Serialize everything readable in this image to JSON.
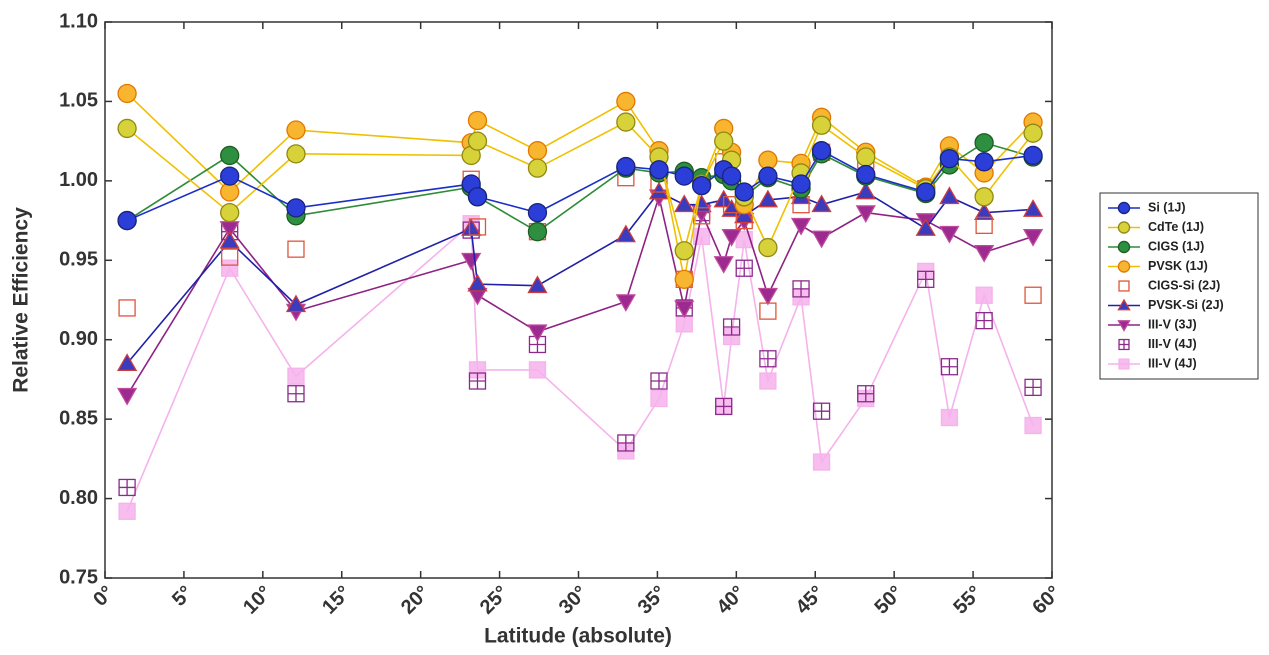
{
  "chart_data": {
    "type": "line",
    "x_label": "Latitude (absolute)",
    "y_label": "Relative Efficiency",
    "xlim": [
      0,
      60
    ],
    "ylim": [
      0.75,
      1.1
    ],
    "xticks": [
      {
        "value": 0,
        "label": "0°"
      },
      {
        "value": 5,
        "label": "5°"
      },
      {
        "value": 10,
        "label": "10°"
      },
      {
        "value": 15,
        "label": "15°"
      },
      {
        "value": 20,
        "label": "20°"
      },
      {
        "value": 25,
        "label": "25°"
      },
      {
        "value": 30,
        "label": "30°"
      },
      {
        "value": 35,
        "label": "35°"
      },
      {
        "value": 40,
        "label": "40°"
      },
      {
        "value": 45,
        "label": "45°"
      },
      {
        "value": 50,
        "label": "50°"
      },
      {
        "value": 55,
        "label": "55°"
      },
      {
        "value": 60,
        "label": "60°"
      }
    ],
    "yticks": [
      0.75,
      {
        "value": 0.8,
        "label": "0.80"
      },
      0.85,
      {
        "value": 0.9,
        "label": "0.90"
      },
      0.95,
      {
        "value": 1,
        "label": "1.00"
      },
      1.05,
      {
        "value": 1.1,
        "label": "1.10"
      }
    ],
    "legend": "outside-right",
    "x": [
      1.4,
      7.9,
      12.1,
      23.2,
      23.6,
      27.4,
      33.0,
      35.1,
      36.7,
      37.8,
      39.2,
      39.7,
      40.5,
      42.0,
      44.1,
      45.4,
      48.2,
      52.0,
      53.5,
      55.7,
      58.8
    ],
    "series": [
      {
        "name": "Si (1J)",
        "color": "#2b3fd8",
        "edge": "#1a237e",
        "line_color": "#1a2fc8",
        "marker": "circle",
        "line": true,
        "values": [
          0.975,
          1.003,
          0.983,
          0.998,
          0.99,
          0.98,
          1.009,
          1.007,
          1.003,
          0.997,
          1.007,
          1.003,
          0.993,
          1.003,
          0.998,
          1.019,
          1.004,
          0.993,
          1.014,
          1.012,
          1.016
        ]
      },
      {
        "name": "CdTe (1J)",
        "color": "#d8d23a",
        "edge": "#8f8a10",
        "line_color": "#f0c000",
        "marker": "circle",
        "line": true,
        "values": [
          1.033,
          0.98,
          1.017,
          1.016,
          1.025,
          1.008,
          1.037,
          1.015,
          0.956,
          0.998,
          1.025,
          1.013,
          0.99,
          0.958,
          1.005,
          1.035,
          1.015,
          0.995,
          1.015,
          0.99,
          1.03
        ]
      },
      {
        "name": "CIGS (1J)",
        "color": "#2f8f40",
        "edge": "#1b5e20",
        "line_color": "#2e8b3a",
        "marker": "circle",
        "line": true,
        "values": [
          0.975,
          1.016,
          0.978,
          0.996,
          0.99,
          0.968,
          1.008,
          1.005,
          1.006,
          1.002,
          1.004,
          1.0,
          0.99,
          1.002,
          0.995,
          1.017,
          1.003,
          0.992,
          1.01,
          1.024,
          1.015
        ]
      },
      {
        "name": "PVSK (1J)",
        "color": "#f8b530",
        "edge": "#e07800",
        "line_color": "#f0c000",
        "marker": "circle",
        "line": true,
        "values": [
          1.055,
          0.993,
          1.032,
          1.024,
          1.038,
          1.019,
          1.05,
          1.019,
          0.938,
          0.998,
          1.033,
          1.018,
          0.985,
          1.013,
          1.011,
          1.04,
          1.018,
          0.996,
          1.022,
          1.005,
          1.037
        ]
      },
      {
        "name": "CIGS-Si (2J)",
        "color": "none",
        "edge": "#e0553a",
        "line_color": "#e0553a",
        "marker": "square-open",
        "line": false,
        "values": [
          0.92,
          0.952,
          0.957,
          1.001,
          0.971,
          0.968,
          1.002,
          0.998,
          0.938,
          0.978,
          1.012,
          0.985,
          0.975,
          0.918,
          0.985,
          1.018,
          1.013,
          0.995,
          1.018,
          0.972,
          0.928
        ]
      },
      {
        "name": "PVSK-Si (2J)",
        "color": "#3b3bbd",
        "edge": "#d03a3a",
        "line_color": "#2020a8",
        "marker": "triangle-up",
        "line": true,
        "values": [
          0.885,
          0.962,
          0.922,
          0.97,
          0.935,
          0.934,
          0.966,
          0.993,
          0.985,
          0.985,
          0.988,
          0.982,
          0.978,
          0.988,
          0.99,
          0.985,
          0.993,
          0.97,
          0.99,
          0.98,
          0.982
        ]
      },
      {
        "name": "III-V (3J)",
        "color": "#9c2a90",
        "edge": "#c04a9a",
        "line_color": "#8e2283",
        "marker": "triangle-down",
        "line": true,
        "values": [
          0.865,
          0.97,
          0.918,
          0.95,
          0.928,
          0.905,
          0.924,
          0.99,
          0.92,
          0.98,
          0.948,
          0.965,
          0.975,
          0.928,
          0.972,
          0.964,
          0.98,
          0.975,
          0.967,
          0.955,
          0.965
        ]
      },
      {
        "name": "III-V (4J)",
        "color": "none",
        "edge": "#8b2a8b",
        "line_color": "#8b2a8b",
        "marker": "square-cross",
        "line": false,
        "values": [
          0.807,
          0.968,
          0.866,
          0.969,
          0.874,
          0.897,
          0.835,
          0.874,
          0.92,
          0.98,
          0.858,
          0.908,
          0.945,
          0.888,
          0.932,
          0.855,
          0.866,
          0.938,
          0.883,
          0.912,
          0.87
        ]
      },
      {
        "name": "III-V (4J)",
        "color": "#f6b2ec",
        "edge": "#f6b2ec",
        "line_color": "#f6b2ec",
        "marker": "square",
        "line": true,
        "values": [
          0.792,
          0.945,
          0.877,
          0.973,
          0.881,
          0.881,
          0.83,
          0.863,
          0.91,
          0.965,
          0.858,
          0.902,
          0.963,
          0.874,
          0.927,
          0.823,
          0.863,
          0.943,
          0.851,
          0.928,
          0.846
        ]
      }
    ]
  }
}
